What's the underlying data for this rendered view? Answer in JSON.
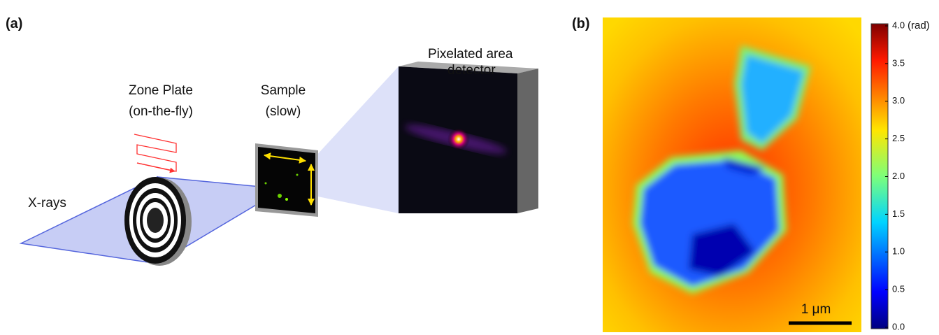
{
  "panel_a": {
    "label": "(a)",
    "detector": [
      "Pixelated area",
      "detector"
    ],
    "zone_plate": [
      "Zone Plate",
      "(on-the-fly)"
    ],
    "sample": [
      "Sample",
      "(slow)"
    ],
    "beam": "X-rays"
  },
  "panel_b": {
    "label": "(b)",
    "scale_bar": "1 μm",
    "colorbar": {
      "unit": "(rad)",
      "lim": [
        0,
        4
      ],
      "ticks": [
        {
          "value": 0,
          "label": "0.0"
        },
        {
          "value": 0.5,
          "label": "0.5"
        },
        {
          "value": 1,
          "label": "1.0"
        },
        {
          "value": 1.5,
          "label": "1.5"
        },
        {
          "value": 2,
          "label": "2.0"
        },
        {
          "value": 2.5,
          "label": "2.5"
        },
        {
          "value": 3,
          "label": "3.0"
        },
        {
          "value": 3.5,
          "label": "3.5"
        },
        {
          "value": 4,
          "label": "4.0"
        }
      ]
    }
  }
}
